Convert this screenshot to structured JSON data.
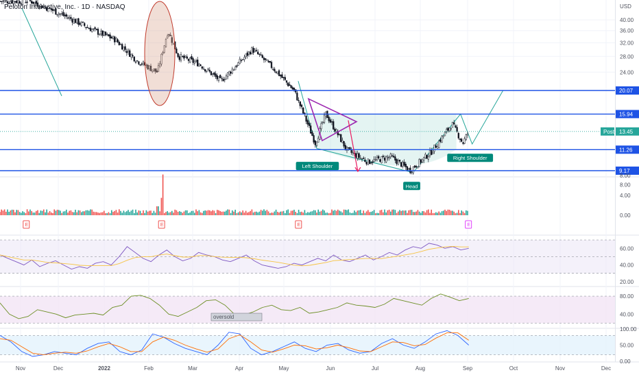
{
  "title": "Peloton Interactive, Inc. · 1D · NASDAQ",
  "title_main": "Peloton Interactive, Inc.",
  "title_tf": "· 1D · NASDAQ",
  "currency": "USD",
  "colors": {
    "up": "#26a69a",
    "down": "#ef5350",
    "level": "#1e53e5",
    "label_bg": "#1e53e5",
    "cup": "#26a69a",
    "triangle": "#9c27b0",
    "volume_up": "#26a69a",
    "volume_down": "#ef5350",
    "rsi": "#7e57c2",
    "rsi_ma": "#f6c343",
    "osc1": "#6b8e23",
    "stoch_k": "#2962ff",
    "stoch_d": "#ff6d00"
  },
  "chart_data": [
    {
      "type": "candlestick",
      "title": "Peloton Interactive, Inc. · 1D · NASDAQ",
      "x_ticks": [
        "Nov",
        "Dec",
        "2022",
        "Feb",
        "Mar",
        "Apr",
        "May",
        "Jun",
        "Jul",
        "Aug",
        "Sep",
        "Oct",
        "Nov",
        "Dec"
      ],
      "y_scale": "log",
      "y_ticks": [
        40,
        36,
        32,
        28,
        24,
        20.07,
        15.94,
        11.26,
        9.17,
        8
      ],
      "ylim": [
        7.5,
        46
      ],
      "close_series": [
        {
          "date": "2021-11-08",
          "close": 48
        },
        {
          "date": "2021-11-22",
          "close": 44
        },
        {
          "date": "2021-12-06",
          "close": 40
        },
        {
          "date": "2021-12-20",
          "close": 36
        },
        {
          "date": "2022-01-03",
          "close": 33
        },
        {
          "date": "2022-01-17",
          "close": 27
        },
        {
          "date": "2022-01-31",
          "close": 24
        },
        {
          "date": "2022-02-07",
          "close": 36
        },
        {
          "date": "2022-02-14",
          "close": 28
        },
        {
          "date": "2022-02-28",
          "close": 26
        },
        {
          "date": "2022-03-14",
          "close": 22
        },
        {
          "date": "2022-03-28",
          "close": 27
        },
        {
          "date": "2022-04-04",
          "close": 30
        },
        {
          "date": "2022-04-18",
          "close": 25
        },
        {
          "date": "2022-05-02",
          "close": 20
        },
        {
          "date": "2022-05-16",
          "close": 12
        },
        {
          "date": "2022-05-23",
          "close": 16
        },
        {
          "date": "2022-06-06",
          "close": 11.2
        },
        {
          "date": "2022-06-20",
          "close": 10
        },
        {
          "date": "2022-07-05",
          "close": 10.5
        },
        {
          "date": "2022-07-18",
          "close": 9.2
        },
        {
          "date": "2022-08-01",
          "close": 11
        },
        {
          "date": "2022-08-15",
          "close": 14.5
        },
        {
          "date": "2022-08-22",
          "close": 12
        },
        {
          "date": "2022-08-26",
          "close": 13.45
        }
      ],
      "price_levels": [
        {
          "label": "20.07",
          "value": 20.07
        },
        {
          "label": "15.94",
          "value": 15.94
        },
        {
          "label": "11.26",
          "value": 11.26
        },
        {
          "label": "9.17",
          "value": 9.17
        }
      ],
      "post_market": {
        "label": "Post",
        "value": "13.45"
      },
      "annotations": [
        "Left Shoulder",
        "Head",
        "Right Shoulder"
      ]
    },
    {
      "type": "bar",
      "title": "",
      "y_ticks": [
        8.0,
        4.0,
        0.0
      ],
      "earnings_marker": "E",
      "note": "volume histogram"
    },
    {
      "type": "line",
      "y_ticks": [
        60.0,
        40.0,
        20.0
      ],
      "ylim": [
        15,
        75
      ],
      "series": [
        {
          "values": [
            52,
            48,
            44,
            40,
            46,
            38,
            42,
            45,
            40,
            35,
            38,
            36,
            42,
            44,
            40,
            50,
            62,
            55,
            48,
            44,
            52,
            58,
            50,
            45,
            48,
            55,
            52,
            50,
            46,
            44,
            48,
            52,
            45,
            40,
            38,
            36,
            38,
            42,
            40,
            44,
            48,
            45,
            52,
            46,
            44,
            48,
            52,
            46,
            50,
            55,
            52,
            58,
            62,
            60,
            66,
            64,
            60,
            62,
            58,
            60
          ]
        }
      ]
    },
    {
      "type": "line",
      "y_ticks": [
        80.0,
        40.0
      ],
      "ylim": [
        10,
        100
      ],
      "annotation": "oversold",
      "series": [
        {
          "values": [
            65,
            40,
            30,
            35,
            50,
            45,
            40,
            32,
            38,
            40,
            42,
            38,
            55,
            60,
            80,
            82,
            75,
            60,
            40,
            35,
            45,
            55,
            70,
            72,
            60,
            40,
            38,
            45,
            55,
            60,
            50,
            48,
            55,
            42,
            45,
            50,
            55,
            65,
            60,
            58,
            55,
            62,
            75,
            70,
            65,
            60,
            75,
            85,
            78,
            70,
            75
          ]
        }
      ]
    },
    {
      "type": "line",
      "y_ticks": [
        100.0,
        50.0,
        0.0
      ],
      "ylim": [
        0,
        100
      ],
      "series": [
        {
          "values": [
            80,
            60,
            30,
            15,
            20,
            30,
            25,
            20,
            40,
            55,
            60,
            30,
            20,
            35,
            85,
            75,
            55,
            40,
            30,
            20,
            50,
            90,
            85,
            40,
            20,
            30,
            45,
            60,
            40,
            30,
            50,
            55,
            35,
            25,
            30,
            55,
            70,
            50,
            40,
            60,
            85,
            95,
            80,
            50
          ]
        },
        {
          "values": [
            70,
            65,
            45,
            25,
            20,
            25,
            28,
            25,
            32,
            45,
            55,
            45,
            30,
            30,
            60,
            75,
            65,
            50,
            38,
            28,
            38,
            70,
            82,
            60,
            35,
            28,
            38,
            50,
            48,
            38,
            42,
            50,
            42,
            32,
            30,
            45,
            60,
            58,
            48,
            52,
            72,
            88,
            88,
            65
          ]
        }
      ]
    }
  ]
}
